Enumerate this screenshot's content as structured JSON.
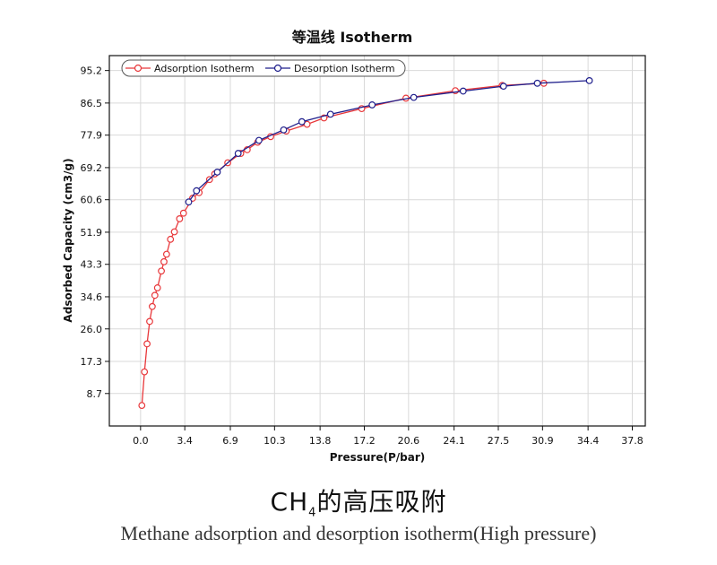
{
  "chart_data": {
    "type": "line",
    "title": "等温线 Isotherm",
    "xlabel": "Pressure(P/bar)",
    "ylabel": "Adsorbed Capacity (cm3/g)",
    "xlim": [
      -2.4,
      38.8
    ],
    "ylim": [
      0,
      99.2
    ],
    "x_ticks": [
      "0.0",
      "3.4",
      "6.9",
      "10.3",
      "13.8",
      "17.2",
      "20.6",
      "24.1",
      "27.5",
      "30.9",
      "34.4",
      "37.8"
    ],
    "y_ticks": [
      "8.7",
      "17.3",
      "26.0",
      "34.6",
      "43.3",
      "51.9",
      "60.6",
      "69.2",
      "77.9",
      "86.5",
      "95.2"
    ],
    "grid": true,
    "legend_position": "top-left",
    "series": [
      {
        "name": "Adsorption Isotherm",
        "color": "#e8383b",
        "marker": "circle",
        "points": [
          [
            0.1,
            5.5
          ],
          [
            0.3,
            14.5
          ],
          [
            0.5,
            22.0
          ],
          [
            0.7,
            28.0
          ],
          [
            0.9,
            32.0
          ],
          [
            1.1,
            35.0
          ],
          [
            1.3,
            37.0
          ],
          [
            1.6,
            41.5
          ],
          [
            1.8,
            44.0
          ],
          [
            2.0,
            46.0
          ],
          [
            2.3,
            50.0
          ],
          [
            2.6,
            52.0
          ],
          [
            3.0,
            55.5
          ],
          [
            3.3,
            57.0
          ],
          [
            4.0,
            61.0
          ],
          [
            4.5,
            62.5
          ],
          [
            5.3,
            66.0
          ],
          [
            5.7,
            67.5
          ],
          [
            6.7,
            70.5
          ],
          [
            7.7,
            73.0
          ],
          [
            8.2,
            74.0
          ],
          [
            9.0,
            76.0
          ],
          [
            10.0,
            77.5
          ],
          [
            11.2,
            79.0
          ],
          [
            12.8,
            80.8
          ],
          [
            14.1,
            82.5
          ],
          [
            17.0,
            85.0
          ],
          [
            20.4,
            87.8
          ],
          [
            24.2,
            89.8
          ],
          [
            27.8,
            91.2
          ],
          [
            31.0,
            91.8
          ]
        ]
      },
      {
        "name": "Desorption Isotherm",
        "color": "#1f1f8c",
        "marker": "circle",
        "points": [
          [
            34.5,
            92.5
          ],
          [
            30.5,
            91.8
          ],
          [
            27.9,
            91.0
          ],
          [
            24.8,
            89.7
          ],
          [
            21.0,
            88.0
          ],
          [
            17.8,
            86.0
          ],
          [
            14.6,
            83.5
          ],
          [
            12.4,
            81.5
          ],
          [
            11.0,
            79.3
          ],
          [
            9.1,
            76.5
          ],
          [
            7.5,
            73.0
          ],
          [
            5.9,
            68.0
          ],
          [
            4.3,
            63.0
          ],
          [
            3.7,
            60.0
          ]
        ]
      }
    ]
  },
  "caption": {
    "cn_prefix": "CH",
    "cn_sub": "4",
    "cn_suffix": "的高压吸附",
    "en": "Methane adsorption and desorption isotherm(High pressure)"
  }
}
